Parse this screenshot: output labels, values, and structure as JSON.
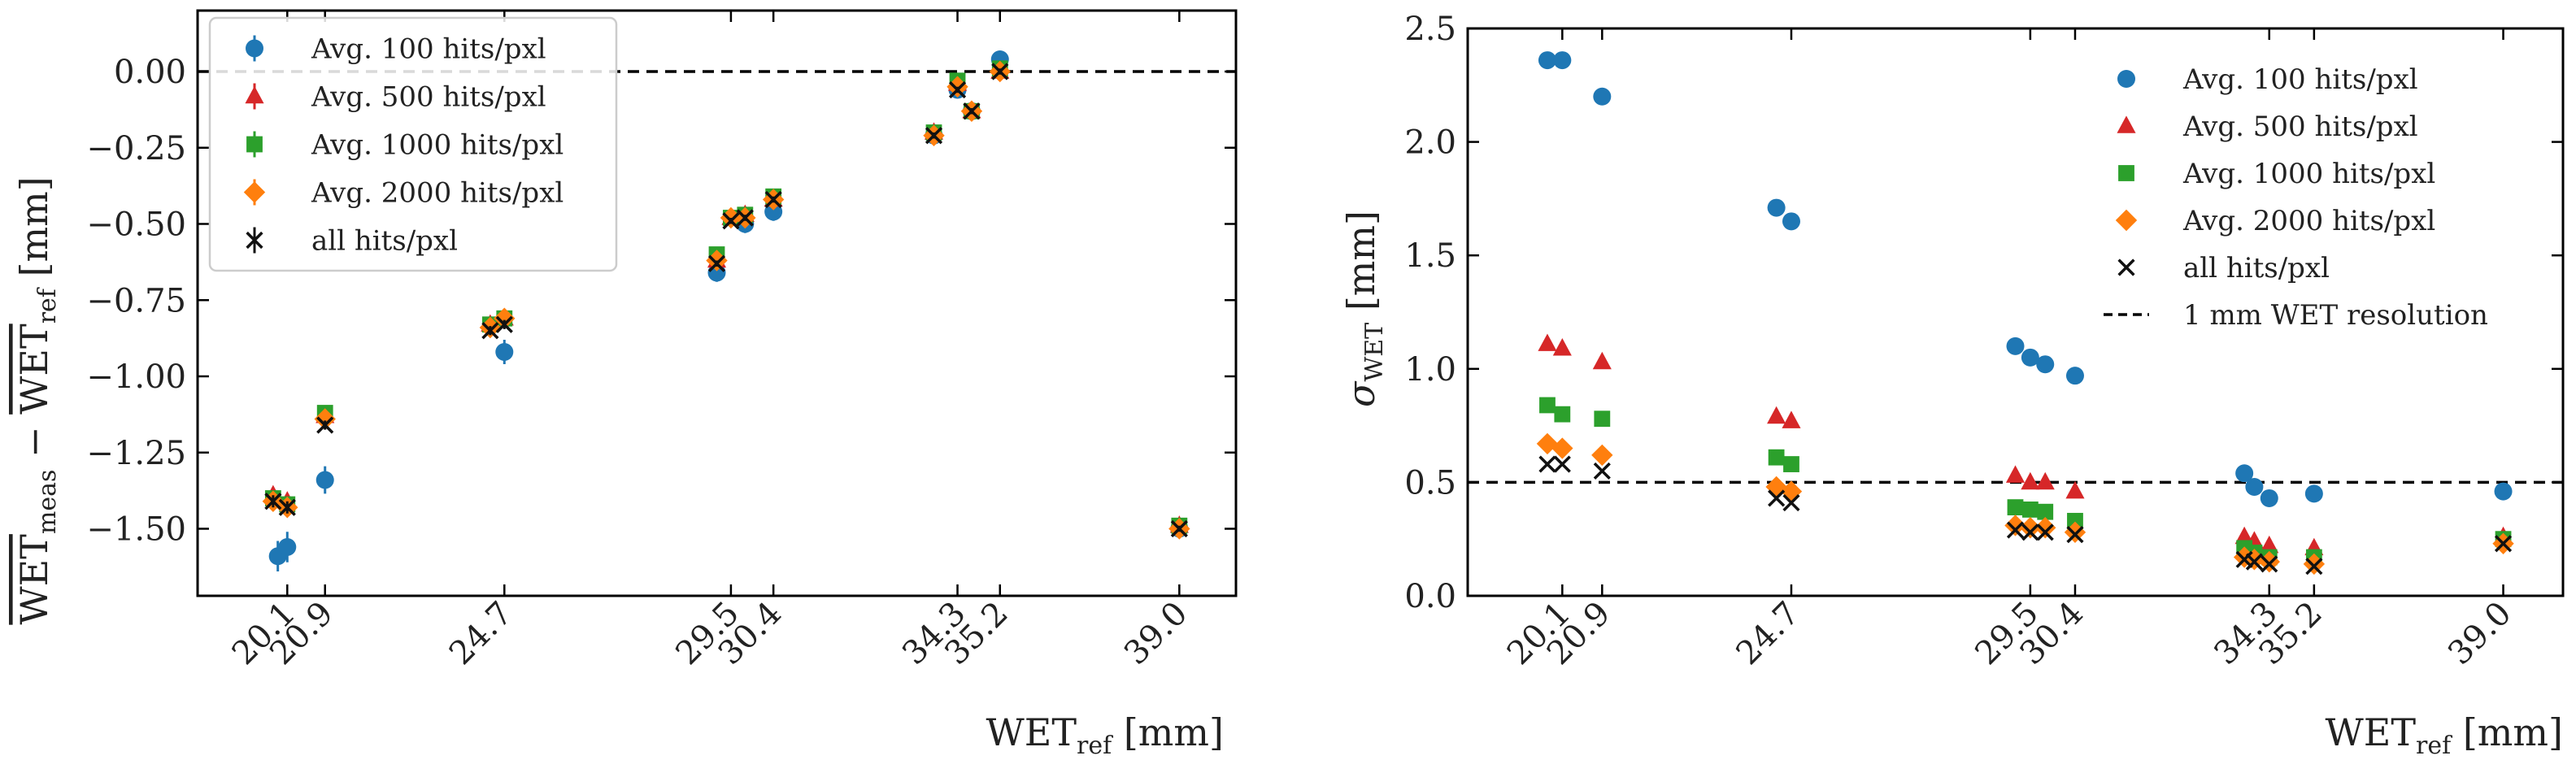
{
  "chart_data": [
    {
      "type": "scatter",
      "ylabel_main": "WET",
      "ylabel_sub1": "meas",
      "ylabel_minus": " − ",
      "ylabel_sub2": "ref",
      "ylabel_unit": " [mm]",
      "xlabel_main": "WET",
      "xlabel_sub": "ref",
      "xlabel_unit": " [mm]",
      "xlim": [
        18.2,
        40.2
      ],
      "ylim": [
        -1.72,
        0.2
      ],
      "x_ticks": [
        20.1,
        20.9,
        24.7,
        29.5,
        30.4,
        34.3,
        35.2,
        39.0
      ],
      "x_tick_labels": [
        "20.1",
        "20.9",
        "24.7",
        "29.5",
        "30.4",
        "34.3",
        "35.2",
        "39.0"
      ],
      "y_ticks": [
        0.0,
        -0.25,
        -0.5,
        -0.75,
        -1.0,
        -1.25,
        -1.5
      ],
      "y_tick_labels": [
        "0.00",
        "−0.25",
        "−0.50",
        "−0.75",
        "−1.00",
        "−1.25",
        "−1.50"
      ],
      "reference_line": 0.0,
      "legend_position": "upper-left",
      "series": [
        {
          "name": "Avg. 100 hits/pxl",
          "color": "#1f77b4",
          "marker": "circle",
          "points": [
            [
              19.9,
              -1.59
            ],
            [
              20.1,
              -1.56
            ],
            [
              20.9,
              -1.34
            ],
            [
              24.7,
              -0.92
            ],
            [
              29.2,
              -0.66
            ],
            [
              29.8,
              -0.5
            ],
            [
              30.4,
              -0.46
            ],
            [
              33.8,
              -0.21
            ],
            [
              34.3,
              -0.06
            ],
            [
              34.6,
              -0.13
            ],
            [
              35.2,
              0.04
            ],
            [
              39.0,
              -1.5
            ]
          ],
          "errors": [
            0.05,
            0.05,
            0.045,
            0.04,
            0.03,
            0.03,
            0.03,
            0.02,
            0.02,
            0.02,
            0.01,
            0.01
          ]
        },
        {
          "name": "Avg. 500 hits/pxl",
          "color": "#d62728",
          "marker": "triangle",
          "points": [
            [
              19.8,
              -1.39
            ],
            [
              20.1,
              -1.41
            ],
            [
              20.9,
              -1.13
            ],
            [
              24.4,
              -0.83
            ],
            [
              24.7,
              -0.81
            ],
            [
              29.2,
              -0.62
            ],
            [
              29.5,
              -0.48
            ],
            [
              29.8,
              -0.47
            ],
            [
              30.4,
              -0.42
            ],
            [
              33.8,
              -0.2
            ],
            [
              34.3,
              -0.04
            ],
            [
              34.6,
              -0.13
            ],
            [
              35.2,
              0.0
            ],
            [
              39.0,
              -1.49
            ]
          ],
          "errors": [
            0.025,
            0.025,
            0.02,
            0.02,
            0.02,
            0.015,
            0.015,
            0.015,
            0.015,
            0.01,
            0.01,
            0.01,
            0.01,
            0.01
          ]
        },
        {
          "name": "Avg. 1000 hits/pxl",
          "color": "#2ca02c",
          "marker": "square",
          "points": [
            [
              19.8,
              -1.4
            ],
            [
              20.1,
              -1.42
            ],
            [
              20.9,
              -1.12
            ],
            [
              24.4,
              -0.83
            ],
            [
              24.7,
              -0.81
            ],
            [
              29.2,
              -0.6
            ],
            [
              29.5,
              -0.48
            ],
            [
              29.8,
              -0.47
            ],
            [
              30.4,
              -0.41
            ],
            [
              33.8,
              -0.2
            ],
            [
              34.3,
              -0.03
            ],
            [
              34.6,
              -0.13
            ],
            [
              35.2,
              0.01
            ],
            [
              39.0,
              -1.49
            ]
          ],
          "errors": [
            0.02,
            0.02,
            0.015,
            0.015,
            0.015,
            0.01,
            0.01,
            0.01,
            0.01,
            0.01,
            0.01,
            0.01,
            0.01,
            0.01
          ]
        },
        {
          "name": "Avg. 2000 hits/pxl",
          "color": "#ff7f0e",
          "marker": "diamond",
          "points": [
            [
              19.8,
              -1.41
            ],
            [
              20.1,
              -1.43
            ],
            [
              20.9,
              -1.14
            ],
            [
              24.4,
              -0.84
            ],
            [
              24.7,
              -0.81
            ],
            [
              29.2,
              -0.62
            ],
            [
              29.5,
              -0.48
            ],
            [
              29.8,
              -0.48
            ],
            [
              30.4,
              -0.42
            ],
            [
              33.8,
              -0.21
            ],
            [
              34.3,
              -0.05
            ],
            [
              34.6,
              -0.13
            ],
            [
              35.2,
              0.0
            ],
            [
              39.0,
              -1.5
            ]
          ],
          "errors": [
            0.02,
            0.02,
            0.015,
            0.015,
            0.015,
            0.01,
            0.01,
            0.01,
            0.01,
            0.01,
            0.01,
            0.01,
            0.01,
            0.01
          ]
        },
        {
          "name": "all hits/pxl",
          "color": "#111111",
          "marker": "x",
          "points": [
            [
              19.8,
              -1.41
            ],
            [
              20.1,
              -1.43
            ],
            [
              20.9,
              -1.16
            ],
            [
              24.4,
              -0.85
            ],
            [
              24.7,
              -0.83
            ],
            [
              29.2,
              -0.63
            ],
            [
              29.5,
              -0.49
            ],
            [
              29.8,
              -0.48
            ],
            [
              30.4,
              -0.42
            ],
            [
              33.8,
              -0.21
            ],
            [
              34.3,
              -0.06
            ],
            [
              34.6,
              -0.13
            ],
            [
              35.2,
              0.0
            ],
            [
              39.0,
              -1.5
            ]
          ],
          "errors": [
            0.02,
            0.02,
            0.015,
            0.015,
            0.015,
            0.01,
            0.01,
            0.01,
            0.01,
            0.01,
            0.01,
            0.01,
            0.01,
            0.01
          ]
        }
      ]
    },
    {
      "type": "scatter",
      "ylabel_main": "σ",
      "ylabel_sub": "WET",
      "ylabel_unit": " [mm]",
      "xlabel_main": "WET",
      "xlabel_sub": "ref",
      "xlabel_unit": " [mm]",
      "xlim": [
        18.2,
        40.2
      ],
      "ylim": [
        0.0,
        2.5
      ],
      "x_ticks": [
        20.1,
        20.9,
        24.7,
        29.5,
        30.4,
        34.3,
        35.2,
        39.0
      ],
      "x_tick_labels": [
        "20.1",
        "20.9",
        "24.7",
        "29.5",
        "30.4",
        "34.3",
        "35.2",
        "39.0"
      ],
      "y_ticks": [
        0.0,
        0.5,
        1.0,
        1.5,
        2.0,
        2.5
      ],
      "y_tick_labels": [
        "0.0",
        "0.5",
        "1.0",
        "1.5",
        "2.0",
        "2.5"
      ],
      "reference_line": 0.5,
      "reference_line_label": "1 mm WET resolution",
      "legend_position": "upper-right",
      "series": [
        {
          "name": "Avg. 100 hits/pxl",
          "color": "#1f77b4",
          "marker": "circle",
          "points": [
            [
              19.8,
              2.36
            ],
            [
              20.1,
              2.36
            ],
            [
              20.9,
              2.2
            ],
            [
              24.4,
              1.71
            ],
            [
              24.7,
              1.65
            ],
            [
              29.2,
              1.1
            ],
            [
              29.5,
              1.05
            ],
            [
              29.8,
              1.02
            ],
            [
              30.4,
              0.97
            ],
            [
              33.8,
              0.54
            ],
            [
              34.0,
              0.48
            ],
            [
              34.3,
              0.43
            ],
            [
              35.2,
              0.45
            ],
            [
              39.0,
              0.46
            ]
          ]
        },
        {
          "name": "Avg. 500 hits/pxl",
          "color": "#d62728",
          "marker": "triangle",
          "points": [
            [
              19.8,
              1.11
            ],
            [
              20.1,
              1.09
            ],
            [
              20.9,
              1.03
            ],
            [
              24.4,
              0.79
            ],
            [
              24.7,
              0.77
            ],
            [
              29.2,
              0.53
            ],
            [
              29.5,
              0.5
            ],
            [
              29.8,
              0.5
            ],
            [
              30.4,
              0.46
            ],
            [
              33.8,
              0.26
            ],
            [
              34.0,
              0.24
            ],
            [
              34.3,
              0.22
            ],
            [
              35.2,
              0.21
            ],
            [
              39.0,
              0.26
            ]
          ]
        },
        {
          "name": "Avg. 1000 hits/pxl",
          "color": "#2ca02c",
          "marker": "square",
          "points": [
            [
              19.8,
              0.84
            ],
            [
              20.1,
              0.8
            ],
            [
              20.9,
              0.78
            ],
            [
              24.4,
              0.61
            ],
            [
              24.7,
              0.58
            ],
            [
              29.2,
              0.39
            ],
            [
              29.5,
              0.38
            ],
            [
              29.8,
              0.37
            ],
            [
              30.4,
              0.33
            ],
            [
              33.8,
              0.21
            ],
            [
              34.0,
              0.19
            ],
            [
              34.3,
              0.17
            ],
            [
              35.2,
              0.17
            ],
            [
              39.0,
              0.25
            ]
          ]
        },
        {
          "name": "Avg. 2000 hits/pxl",
          "color": "#ff7f0e",
          "marker": "diamond",
          "points": [
            [
              19.8,
              0.67
            ],
            [
              20.1,
              0.65
            ],
            [
              20.9,
              0.62
            ],
            [
              24.4,
              0.48
            ],
            [
              24.7,
              0.46
            ],
            [
              29.2,
              0.31
            ],
            [
              29.5,
              0.3
            ],
            [
              29.8,
              0.3
            ],
            [
              30.4,
              0.28
            ],
            [
              33.8,
              0.17
            ],
            [
              34.0,
              0.16
            ],
            [
              34.3,
              0.15
            ],
            [
              35.2,
              0.14
            ],
            [
              39.0,
              0.23
            ]
          ]
        },
        {
          "name": "all hits/pxl",
          "color": "#111111",
          "marker": "x",
          "points": [
            [
              19.8,
              0.58
            ],
            [
              20.1,
              0.58
            ],
            [
              20.9,
              0.55
            ],
            [
              24.4,
              0.43
            ],
            [
              24.7,
              0.41
            ],
            [
              29.2,
              0.29
            ],
            [
              29.5,
              0.28
            ],
            [
              29.8,
              0.28
            ],
            [
              30.4,
              0.27
            ],
            [
              33.8,
              0.16
            ],
            [
              34.0,
              0.15
            ],
            [
              34.3,
              0.14
            ],
            [
              35.2,
              0.13
            ],
            [
              39.0,
              0.23
            ]
          ]
        }
      ]
    }
  ]
}
